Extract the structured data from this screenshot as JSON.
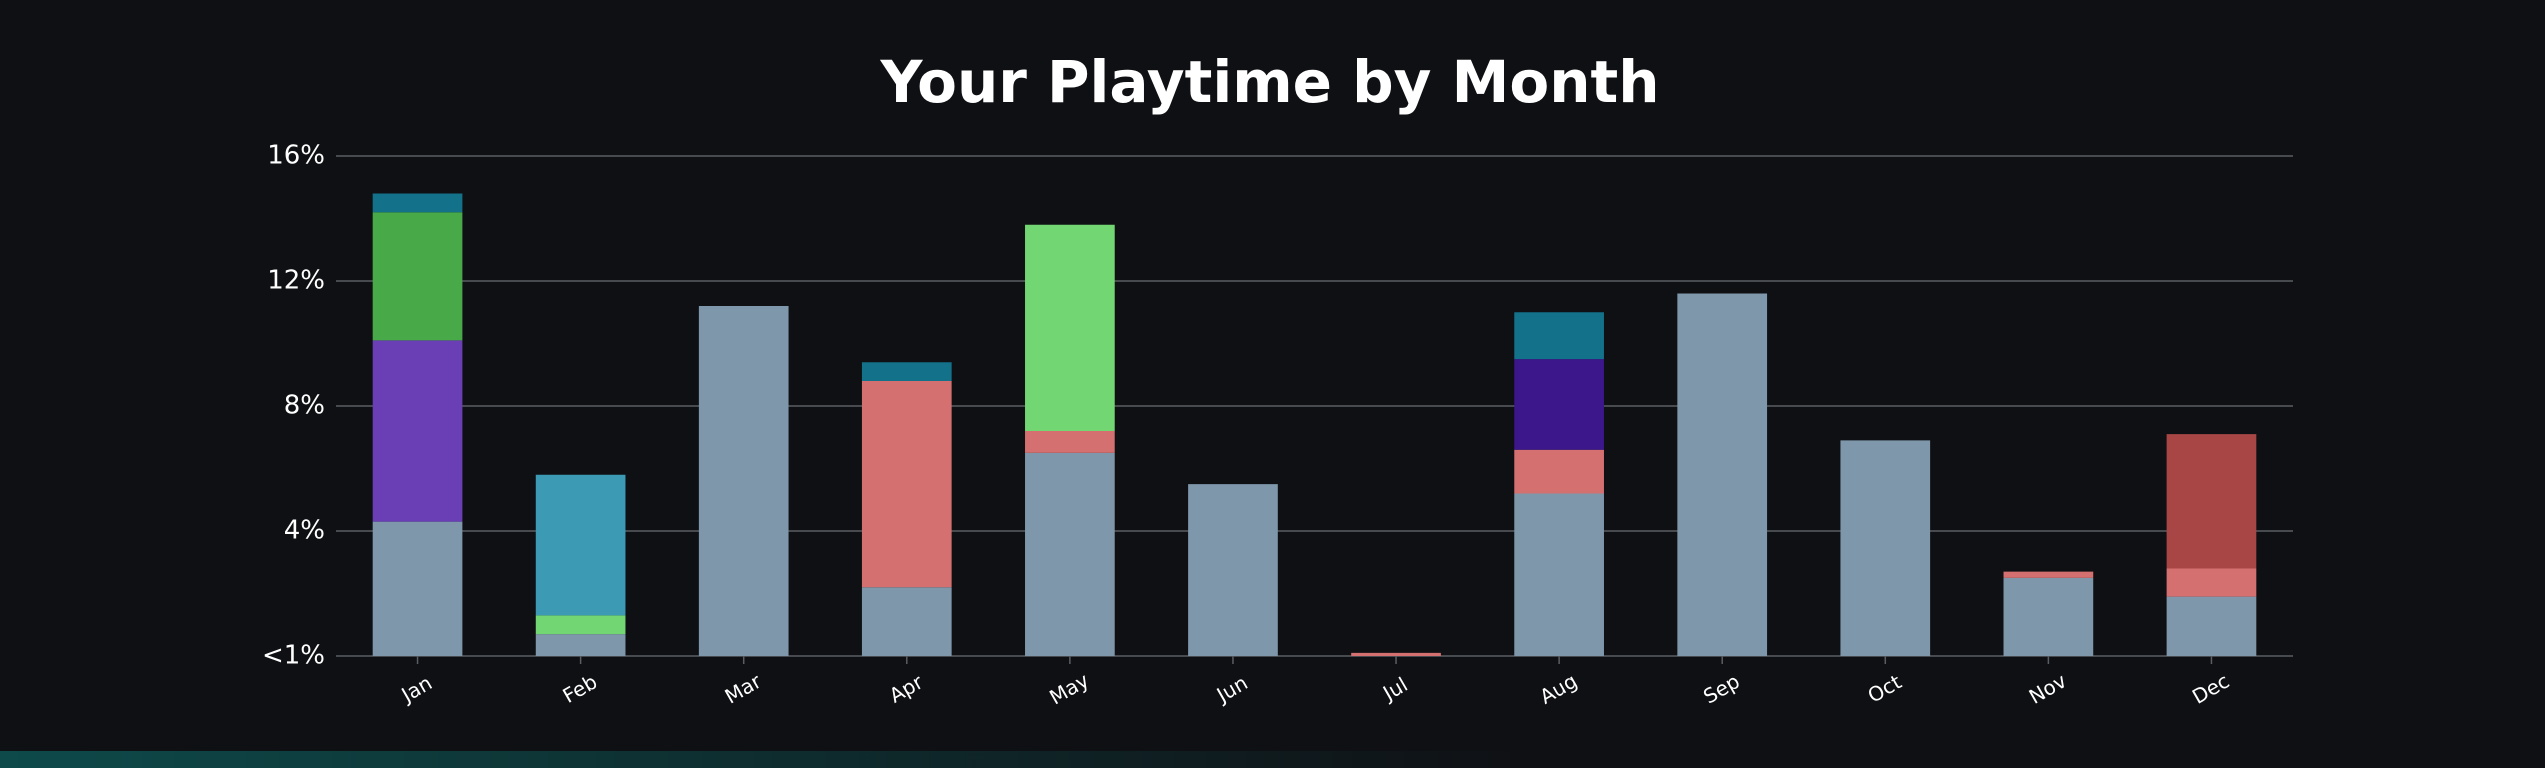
{
  "chart_data": {
    "type": "stacked-bar",
    "title": "Your Playtime by Month",
    "categories": [
      "Jan",
      "Feb",
      "Mar",
      "Apr",
      "May",
      "Jun",
      "Jul",
      "Aug",
      "Sep",
      "Oct",
      "Nov",
      "Dec"
    ],
    "series": [
      {
        "color": "#7f97aa",
        "values": [
          4.3,
          0.7,
          11.2,
          2.2,
          6.5,
          5.5,
          null,
          5.2,
          11.6,
          6.9,
          2.5,
          1.9
        ]
      },
      {
        "color": "#d47070",
        "values": [
          null,
          null,
          null,
          6.6,
          0.7,
          null,
          0.1,
          1.4,
          null,
          null,
          0.2,
          0.9
        ]
      },
      {
        "color": "#72d672",
        "values": [
          null,
          0.6,
          null,
          null,
          6.6,
          null,
          null,
          null,
          null,
          null,
          null,
          null
        ]
      },
      {
        "color": "#3c9ab4",
        "values": [
          null,
          4.5,
          null,
          null,
          null,
          null,
          null,
          null,
          null,
          null,
          null,
          null
        ]
      },
      {
        "color": "#6a3fb5",
        "values": [
          5.8,
          null,
          null,
          null,
          null,
          null,
          null,
          null,
          null,
          null,
          null,
          null
        ]
      },
      {
        "color": "#47a947",
        "values": [
          4.1,
          null,
          null,
          null,
          null,
          null,
          null,
          null,
          null,
          null,
          null,
          null
        ]
      },
      {
        "color": "#3b178b",
        "values": [
          null,
          null,
          null,
          null,
          null,
          null,
          null,
          2.9,
          null,
          null,
          null,
          null
        ]
      },
      {
        "color": "#a84646",
        "values": [
          null,
          null,
          null,
          null,
          null,
          null,
          null,
          null,
          null,
          null,
          null,
          4.3
        ]
      },
      {
        "color": "#13718a",
        "values": [
          0.6,
          null,
          null,
          0.6,
          null,
          null,
          null,
          1.5,
          null,
          null,
          null,
          null
        ]
      }
    ],
    "ylim": [
      0,
      16
    ],
    "yticks": [
      {
        "value": 0,
        "label": "<1%"
      },
      {
        "value": 4,
        "label": "4%"
      },
      {
        "value": 8,
        "label": "8%"
      },
      {
        "value": 12,
        "label": "12%"
      },
      {
        "value": 16,
        "label": "16%"
      }
    ],
    "grid": true
  }
}
